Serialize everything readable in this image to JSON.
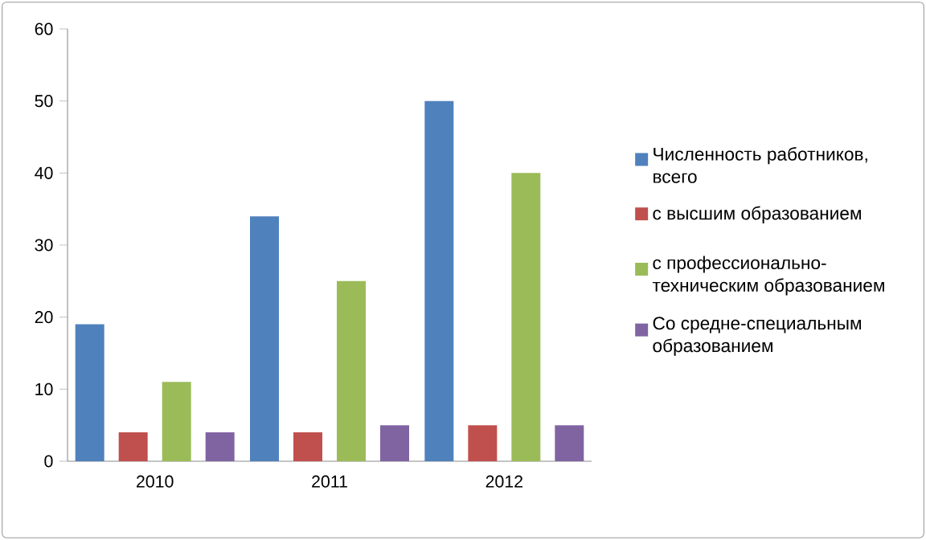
{
  "chart_data": {
    "type": "bar",
    "categories": [
      "2010",
      "2011",
      "2012"
    ],
    "series": [
      {
        "name": "Численность работников, всего",
        "color": "#4f81bd",
        "values": [
          19,
          34,
          50
        ]
      },
      {
        "name": "с высшим образованием",
        "color": "#c0504d",
        "values": [
          4,
          4,
          5
        ]
      },
      {
        "name": "с профессионально-техническим образованием",
        "color": "#9bbb59",
        "values": [
          11,
          25,
          40
        ]
      },
      {
        "name": "Со средне-специальным образованием",
        "color": "#8064a2",
        "values": [
          4,
          5,
          5
        ]
      }
    ],
    "ylim": [
      0,
      60
    ],
    "yticks": [
      0,
      10,
      20,
      30,
      40,
      50,
      60
    ],
    "legend": "right"
  }
}
